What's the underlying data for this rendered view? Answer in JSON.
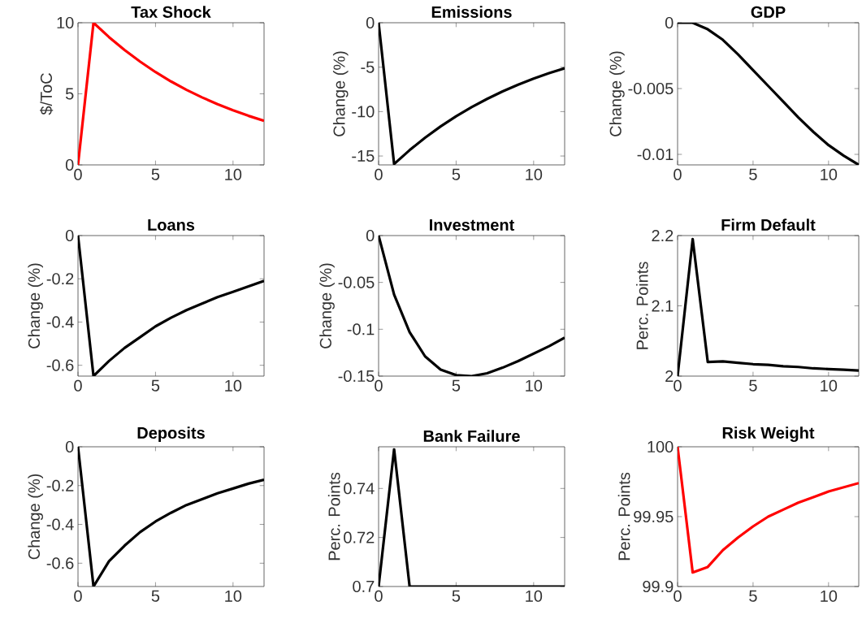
{
  "chart_data": [
    {
      "type": "line",
      "title": "Tax Shock",
      "ylabel": "$/ToC",
      "x": [
        0,
        1,
        2,
        3,
        4,
        5,
        6,
        7,
        8,
        9,
        10,
        11,
        12
      ],
      "xlim": [
        0,
        12
      ],
      "xticks": [
        0,
        5,
        10
      ],
      "ylim": [
        0,
        10
      ],
      "yticks": [
        0,
        5,
        10
      ],
      "series": [
        {
          "color": "#ff0000",
          "values": [
            0,
            10,
            8.99,
            8.08,
            7.27,
            6.53,
            5.87,
            5.28,
            4.75,
            4.27,
            3.84,
            3.45,
            3.1
          ]
        }
      ]
    },
    {
      "type": "line",
      "title": "Emissions",
      "ylabel": "Change (%)",
      "x": [
        0,
        1,
        2,
        3,
        4,
        5,
        6,
        7,
        8,
        9,
        10,
        11,
        12
      ],
      "xlim": [
        0,
        12
      ],
      "xticks": [
        0,
        5,
        10
      ],
      "ylim": [
        -16,
        0
      ],
      "yticks": [
        -15,
        -10,
        -5,
        0
      ],
      "series": [
        {
          "color": "#000000",
          "values": [
            0,
            -15.9,
            -14.34,
            -12.94,
            -11.67,
            -10.53,
            -9.5,
            -8.57,
            -7.73,
            -6.97,
            -6.29,
            -5.67,
            -5.12
          ]
        }
      ]
    },
    {
      "type": "line",
      "title": "GDP",
      "ylabel": "Change (%)",
      "x": [
        0,
        1,
        2,
        3,
        4,
        5,
        6,
        7,
        8,
        9,
        10,
        11,
        12
      ],
      "xlim": [
        0,
        12
      ],
      "xticks": [
        0,
        5,
        10
      ],
      "ylim": [
        -0.0108,
        0
      ],
      "yticks": [
        -0.01,
        -0.005,
        0
      ],
      "series": [
        {
          "color": "#000000",
          "values": [
            0,
            0,
            -0.0005,
            -0.0013,
            -0.0024,
            -0.0036,
            -0.0048,
            -0.006,
            -0.0072,
            -0.0083,
            -0.0093,
            -0.0101,
            -0.0108
          ]
        }
      ]
    },
    {
      "type": "line",
      "title": "Loans",
      "ylabel": "Change (%)",
      "x": [
        0,
        1,
        2,
        3,
        4,
        5,
        6,
        7,
        8,
        9,
        10,
        11,
        12
      ],
      "xlim": [
        0,
        12
      ],
      "xticks": [
        0,
        5,
        10
      ],
      "ylim": [
        -0.65,
        0
      ],
      "yticks": [
        -0.6,
        -0.4,
        -0.2,
        0
      ],
      "series": [
        {
          "color": "#000000",
          "values": [
            0,
            -0.65,
            -0.58,
            -0.52,
            -0.47,
            -0.42,
            -0.38,
            -0.345,
            -0.315,
            -0.285,
            -0.26,
            -0.235,
            -0.21
          ]
        }
      ]
    },
    {
      "type": "line",
      "title": "Investment",
      "ylabel": "Change (%)",
      "x": [
        0,
        1,
        2,
        3,
        4,
        5,
        6,
        7,
        8,
        9,
        10,
        11,
        12
      ],
      "xlim": [
        0,
        12
      ],
      "xticks": [
        0,
        5,
        10
      ],
      "ylim": [
        -0.15,
        0
      ],
      "yticks": [
        -0.15,
        -0.1,
        -0.05,
        0
      ],
      "series": [
        {
          "color": "#000000",
          "values": [
            0,
            -0.063,
            -0.103,
            -0.129,
            -0.143,
            -0.149,
            -0.15,
            -0.147,
            -0.141,
            -0.134,
            -0.126,
            -0.118,
            -0.109
          ]
        }
      ]
    },
    {
      "type": "line",
      "title": "Firm Default",
      "ylabel": "Perc. Points",
      "x": [
        0,
        1,
        2,
        3,
        4,
        5,
        6,
        7,
        8,
        9,
        10,
        11,
        12
      ],
      "xlim": [
        0,
        12
      ],
      "xticks": [
        0,
        5,
        10
      ],
      "ylim": [
        2,
        2.2
      ],
      "yticks": [
        2,
        2.1,
        2.2
      ],
      "series": [
        {
          "color": "#000000",
          "values": [
            2,
            2.195,
            2.02,
            2.021,
            2.019,
            2.017,
            2.016,
            2.014,
            2.013,
            2.011,
            2.01,
            2.009,
            2.008
          ]
        }
      ]
    },
    {
      "type": "line",
      "title": "Deposits",
      "ylabel": "Change (%)",
      "x": [
        0,
        1,
        2,
        3,
        4,
        5,
        6,
        7,
        8,
        9,
        10,
        11,
        12
      ],
      "xlim": [
        0,
        12
      ],
      "xticks": [
        0,
        5,
        10
      ],
      "ylim": [
        -0.72,
        0
      ],
      "yticks": [
        -0.6,
        -0.4,
        -0.2,
        0
      ],
      "series": [
        {
          "color": "#000000",
          "values": [
            0,
            -0.72,
            -0.59,
            -0.51,
            -0.44,
            -0.385,
            -0.34,
            -0.3,
            -0.27,
            -0.24,
            -0.215,
            -0.19,
            -0.17
          ]
        }
      ]
    },
    {
      "type": "line",
      "title": "Bank Failure",
      "ylabel": "Perc. Points",
      "x": [
        0,
        1,
        2,
        3,
        4,
        5,
        6,
        7,
        8,
        9,
        10,
        11,
        12
      ],
      "xlim": [
        0,
        12
      ],
      "xticks": [
        0,
        5,
        10
      ],
      "ylim": [
        0.7,
        0.757
      ],
      "yticks": [
        0.7,
        0.72,
        0.74
      ],
      "series": [
        {
          "color": "#000000",
          "values": [
            0.7,
            0.756,
            0.7,
            0.7,
            0.7,
            0.7,
            0.7,
            0.7,
            0.7,
            0.7,
            0.7,
            0.7,
            0.7
          ]
        }
      ]
    },
    {
      "type": "line",
      "title": "Risk Weight",
      "ylabel": "Perc. Points",
      "x": [
        0,
        1,
        2,
        3,
        4,
        5,
        6,
        7,
        8,
        9,
        10,
        11,
        12
      ],
      "xlim": [
        0,
        12
      ],
      "xticks": [
        0,
        5,
        10
      ],
      "ylim": [
        99.9,
        100
      ],
      "yticks": [
        99.9,
        99.95,
        100
      ],
      "series": [
        {
          "color": "#ff0000",
          "values": [
            100,
            99.91,
            99.914,
            99.926,
            99.935,
            99.943,
            99.95,
            99.955,
            99.96,
            99.964,
            99.968,
            99.971,
            99.974
          ]
        }
      ]
    }
  ]
}
